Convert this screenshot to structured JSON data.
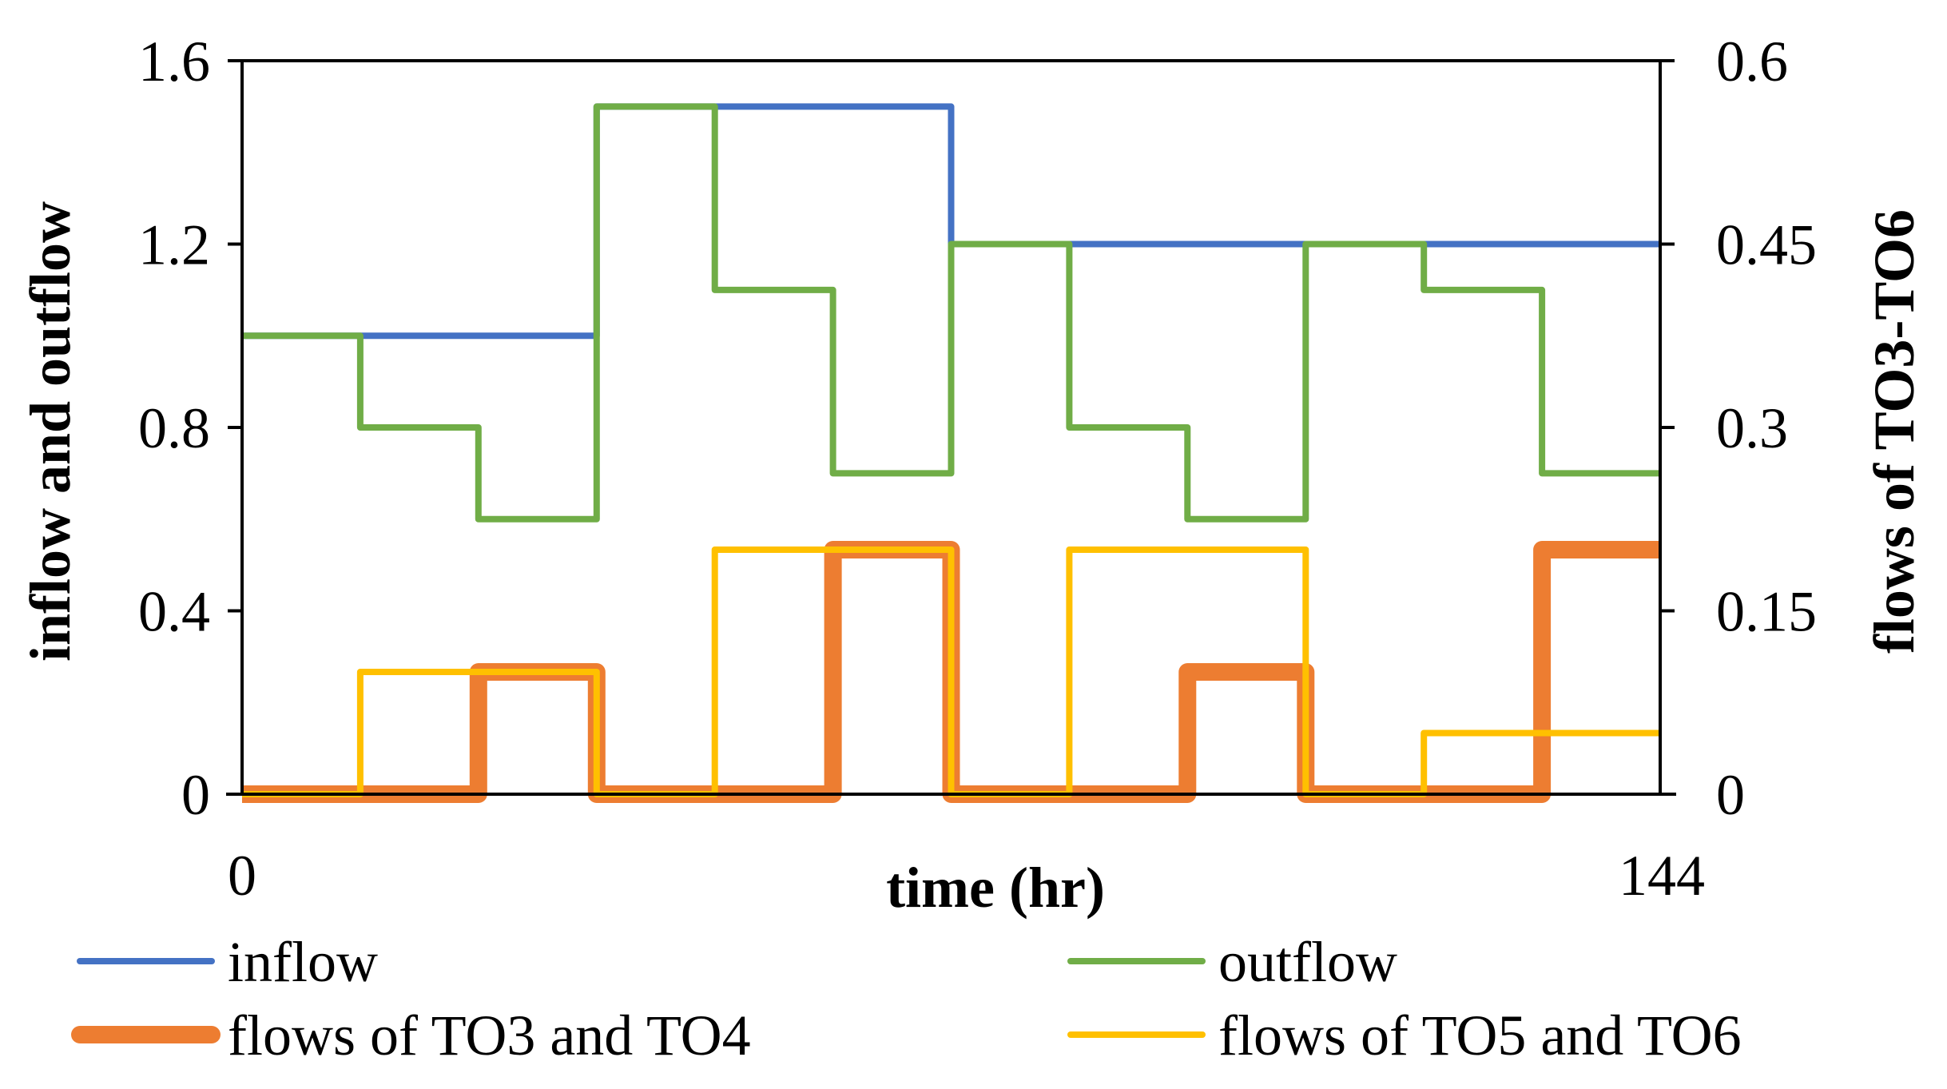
{
  "chart_data": {
    "type": "line",
    "step": true,
    "xlabel": "time (hr)",
    "ylabel_left": "inflow and outflow",
    "ylabel_right": "flows of TO3-TO6",
    "x_tick_labels": [
      "0",
      "144"
    ],
    "xlim": [
      0,
      144
    ],
    "ylim_left": [
      0,
      1.6
    ],
    "ylim_right": [
      0,
      0.6
    ],
    "y_ticks_left": [
      "0",
      "0.4",
      "0.8",
      "1.2",
      "1.6"
    ],
    "y_ticks_right": [
      "0",
      "0.15",
      "0.3",
      "0.45",
      "0.6"
    ],
    "x_breakpoints": [
      0,
      12,
      24,
      36,
      48,
      60,
      72,
      84,
      96,
      108,
      120,
      132,
      144
    ],
    "series": [
      {
        "name": "inflow",
        "axis": "left",
        "color": "#4472C4",
        "values": [
          1.0,
          1.0,
          1.0,
          1.5,
          1.5,
          1.5,
          1.2,
          1.2,
          1.2,
          1.2,
          1.2,
          1.2
        ]
      },
      {
        "name": "outflow",
        "axis": "left",
        "color": "#70AD47",
        "values": [
          1.0,
          0.8,
          0.6,
          1.5,
          1.1,
          0.7,
          1.2,
          0.8,
          0.6,
          1.2,
          1.1,
          0.7
        ]
      },
      {
        "name": "flows of TO3 and TO4",
        "axis": "right",
        "color": "#ED7D31",
        "values": [
          0,
          0,
          0.1,
          0,
          0,
          0.2,
          0,
          0,
          0.1,
          0,
          0,
          0.2
        ]
      },
      {
        "name": "flows of TO5 and TO6",
        "axis": "right",
        "color": "#FFC000",
        "values": [
          0,
          0.1,
          0.1,
          0,
          0.2,
          0.2,
          0,
          0.2,
          0.2,
          0,
          0.05,
          0.05
        ]
      }
    ],
    "legend": [
      "inflow",
      "outflow",
      "flows of TO3 and TO4",
      "flows of TO5 and TO6"
    ],
    "legend_position": "bottom"
  }
}
